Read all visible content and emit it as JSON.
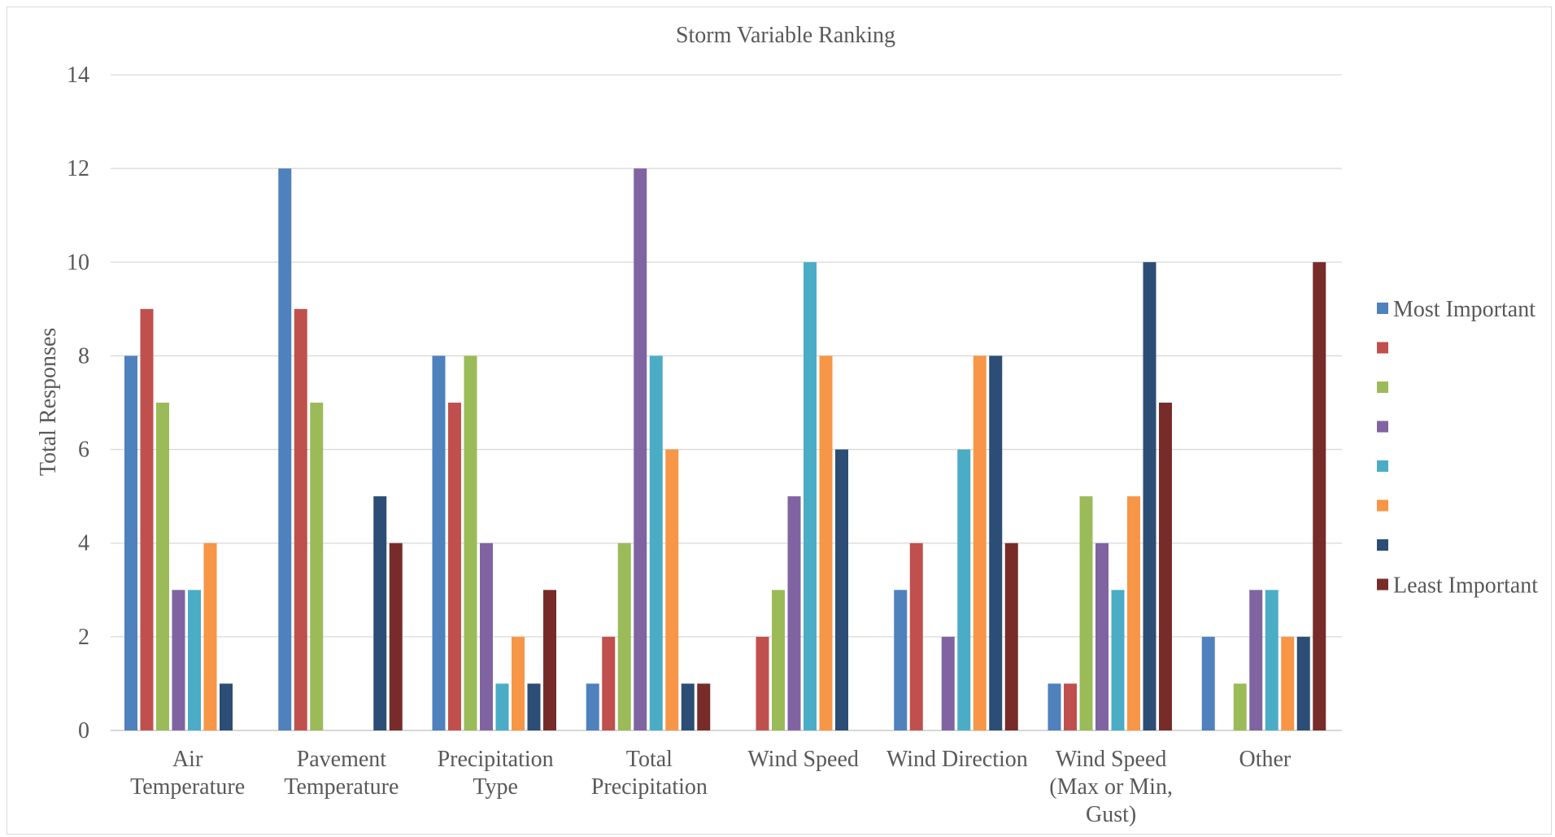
{
  "chart_data": {
    "type": "bar",
    "title": "Storm Variable Ranking",
    "xlabel": "",
    "ylabel": "Total Responses",
    "ylim": [
      0,
      14
    ],
    "yticks": [
      "0",
      "2",
      "4",
      "6",
      "8",
      "10",
      "12",
      "14"
    ],
    "grid": true,
    "legend_position": "right",
    "categories": [
      [
        "Air",
        "Temperature"
      ],
      [
        "Pavement",
        "Temperature"
      ],
      [
        "Precipitation",
        "Type"
      ],
      [
        "Total",
        "Precipitation"
      ],
      [
        "Wind Speed"
      ],
      [
        "Wind Direction"
      ],
      [
        "Wind Speed",
        "(Max or Min,",
        "Gust)"
      ],
      [
        "Other"
      ]
    ],
    "series": [
      {
        "name": "Most Important",
        "color": "#4f81bd",
        "values": [
          8,
          12,
          8,
          1,
          0,
          3,
          1,
          2
        ]
      },
      {
        "name": "",
        "color": "#c0504d",
        "values": [
          9,
          9,
          7,
          2,
          2,
          4,
          1,
          0
        ]
      },
      {
        "name": "",
        "color": "#9bbb59",
        "values": [
          7,
          7,
          8,
          4,
          3,
          0,
          5,
          1
        ]
      },
      {
        "name": "",
        "color": "#8064a2",
        "values": [
          3,
          0,
          4,
          12,
          5,
          2,
          4,
          3
        ]
      },
      {
        "name": "",
        "color": "#4bacc6",
        "values": [
          3,
          0,
          1,
          8,
          10,
          6,
          3,
          3
        ]
      },
      {
        "name": "",
        "color": "#f79646",
        "values": [
          4,
          0,
          2,
          6,
          8,
          8,
          5,
          2
        ]
      },
      {
        "name": "",
        "color": "#2c4d75",
        "values": [
          1,
          5,
          1,
          1,
          6,
          8,
          10,
          2
        ]
      },
      {
        "name": "Least Important",
        "color": "#772c2a",
        "values": [
          0,
          4,
          3,
          1,
          0,
          4,
          7,
          10
        ]
      }
    ]
  }
}
